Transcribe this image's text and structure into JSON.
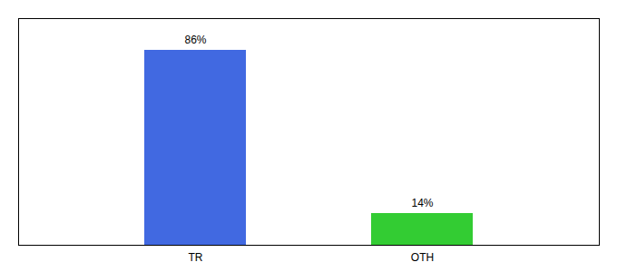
{
  "chart_data": {
    "type": "bar",
    "categories": [
      "TR",
      "OTH"
    ],
    "values": [
      86,
      14
    ],
    "value_labels": [
      "86%",
      "14%"
    ],
    "colors": [
      "#4169e1",
      "#33cc33"
    ],
    "ylim": [
      0,
      100
    ],
    "data_labels": true,
    "tick_labels": "x"
  }
}
